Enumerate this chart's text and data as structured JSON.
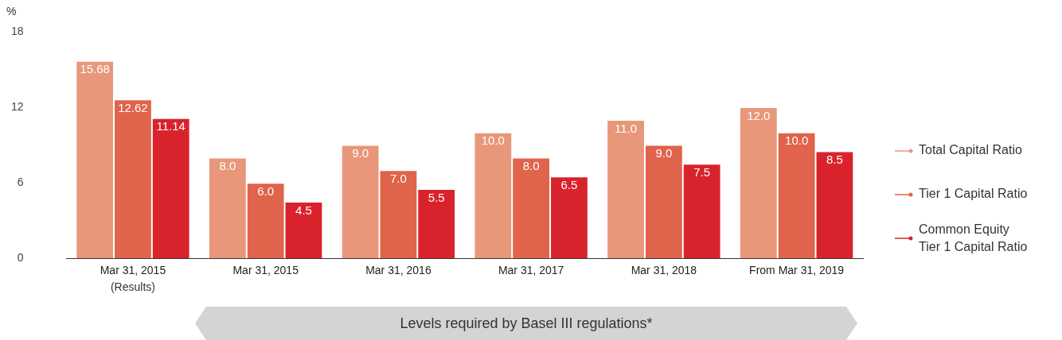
{
  "chart_data": {
    "type": "bar",
    "ylabel": "%",
    "categories": [
      "Mar 31, 2015",
      "Mar 31, 2015",
      "Mar 31, 2016",
      "Mar 31, 2017",
      "Mar 31, 2018",
      "From Mar 31, 2019"
    ],
    "series": [
      {
        "name": "Total Capital Ratio",
        "color": "#e8977a",
        "values": [
          15.68,
          8.0,
          9.0,
          10.0,
          11.0,
          12.0
        ]
      },
      {
        "name": "Tier 1 Capital Ratio",
        "color": "#e0634b",
        "values": [
          12.62,
          6.0,
          7.0,
          8.0,
          9.0,
          10.0
        ]
      },
      {
        "name": "Common Equity Tier 1 Capital Ratio",
        "color": "#d9232c",
        "values": [
          11.14,
          4.5,
          5.5,
          6.5,
          7.5,
          8.5
        ]
      }
    ],
    "value_labels": [
      [
        "15.68",
        "8.0",
        "9.0",
        "10.0",
        "11.0",
        "12.0"
      ],
      [
        "12.62",
        "6.0",
        "7.0",
        "8.0",
        "9.0",
        "10.0"
      ],
      [
        "11.14",
        "4.5",
        "5.5",
        "6.5",
        "7.5",
        "8.5"
      ]
    ],
    "ylim": [
      0,
      18
    ],
    "yticks": [
      0,
      6,
      12,
      18
    ],
    "grid": false,
    "legend": "right",
    "annotations": [
      {
        "text": "(Results)"
      },
      {
        "text": "Levels required by Basel III regulations*"
      }
    ]
  }
}
